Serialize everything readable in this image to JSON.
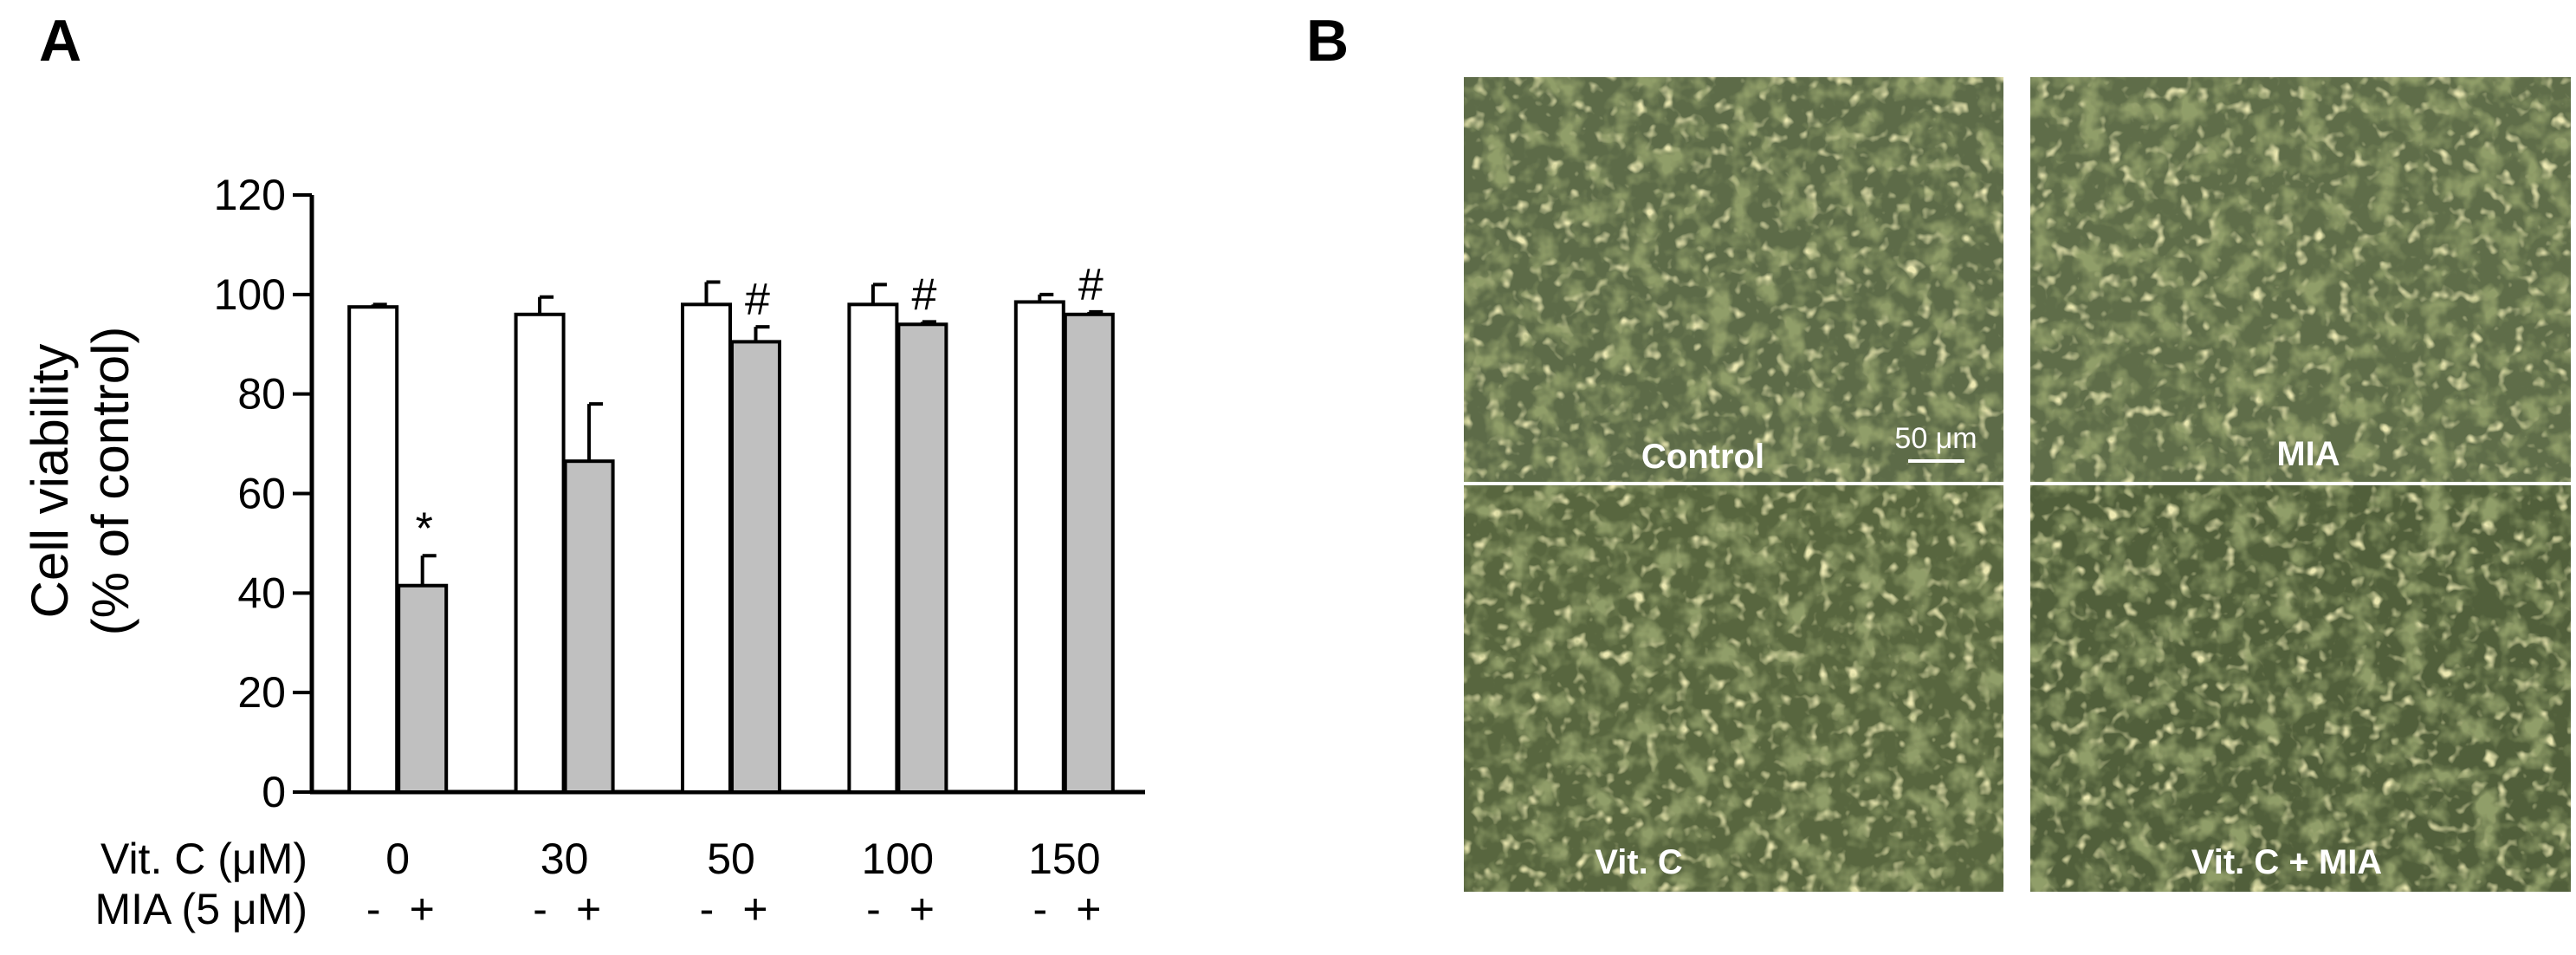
{
  "panel_a": {
    "letter": "A",
    "chart_data": {
      "type": "bar",
      "ylabel_line1": "Cell viability",
      "ylabel_line2": "(% of control)",
      "ylim": [
        0,
        120
      ],
      "yticks": [
        "0",
        "20",
        "40",
        "60",
        "80",
        "100",
        "120"
      ],
      "row1_label": "Vit. C (μM)",
      "row2_label": "MIA (5 μM)",
      "categories": [
        "0",
        "30",
        "50",
        "100",
        "150"
      ],
      "sign_minus": "-",
      "sign_plus": "+",
      "series": [
        {
          "mia": "-",
          "color": "#ffffff",
          "values": [
            97.5,
            96,
            98,
            98,
            98.5
          ],
          "errors": [
            0.5,
            3.5,
            4.5,
            4,
            1.5
          ]
        },
        {
          "mia": "+",
          "color": "#c0c0c0",
          "values": [
            41.5,
            66.5,
            90.5,
            94,
            96
          ],
          "errors": [
            6,
            11.5,
            3,
            0.5,
            0.5
          ]
        }
      ],
      "annotations": [
        "*",
        "",
        "#",
        "#",
        "#"
      ]
    }
  },
  "panel_b": {
    "letter": "B",
    "images": [
      {
        "label": "Control",
        "scale_bar": "50 μm"
      },
      {
        "label": "MIA"
      },
      {
        "label": "Vit. C"
      },
      {
        "label": "Vit. C + MIA"
      }
    ]
  }
}
